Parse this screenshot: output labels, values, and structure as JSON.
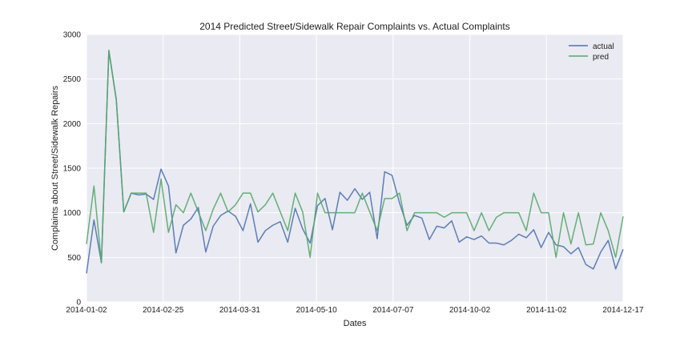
{
  "chart_data": {
    "type": "line",
    "title": "2014 Predicted Street/Sidewalk Repair Complaints vs. Actual Complaints",
    "xlabel": "Dates",
    "ylabel": "Complaints about Street/Sidewalk Repairs",
    "ylim": [
      0,
      3000
    ],
    "y_ticks": [
      0,
      500,
      1000,
      1500,
      2000,
      2500,
      3000
    ],
    "x_tick_labels": [
      "2014-01-02",
      "2014-02-25",
      "2014-03-31",
      "2014-05-10",
      "2014-07-07",
      "2014-10-02",
      "2014-11-02",
      "2014-12-17"
    ],
    "grid": true,
    "legend_position": "top-right",
    "colors": {
      "background": "#eaeaf2",
      "grid": "#ffffff",
      "actual": "#4c72b0",
      "pred": "#55a868"
    },
    "series": [
      {
        "name": "actual",
        "values": [
          320,
          920,
          440,
          2820,
          2270,
          1010,
          1220,
          1200,
          1210,
          1150,
          1490,
          1300,
          550,
          860,
          930,
          1060,
          560,
          850,
          970,
          1020,
          960,
          800,
          1100,
          670,
          800,
          860,
          900,
          670,
          1050,
          820,
          660,
          1080,
          1160,
          810,
          1230,
          1140,
          1270,
          1150,
          1230,
          710,
          1460,
          1420,
          1110,
          860,
          970,
          940,
          700,
          850,
          830,
          910,
          670,
          730,
          700,
          740,
          660,
          660,
          640,
          690,
          760,
          720,
          810,
          610,
          780,
          640,
          620,
          540,
          610,
          420,
          370,
          560,
          690,
          370,
          590
        ]
      },
      {
        "name": "pred",
        "values": [
          650,
          1300,
          440,
          2820,
          2260,
          1010,
          1220,
          1220,
          1220,
          780,
          1380,
          780,
          1090,
          1000,
          1220,
          1010,
          800,
          1040,
          1220,
          1010,
          1090,
          1220,
          1220,
          1010,
          1090,
          1220,
          1010,
          800,
          1220,
          1010,
          500,
          1220,
          1000,
          1000,
          1000,
          1000,
          1000,
          1220,
          1010,
          800,
          1160,
          1160,
          1220,
          800,
          1000,
          1000,
          1000,
          1000,
          950,
          1000,
          1000,
          1000,
          800,
          1000,
          800,
          950,
          1000,
          1000,
          1000,
          800,
          1220,
          1000,
          1000,
          500,
          1000,
          650,
          1000,
          640,
          650,
          1000,
          800,
          500,
          960
        ]
      }
    ]
  }
}
